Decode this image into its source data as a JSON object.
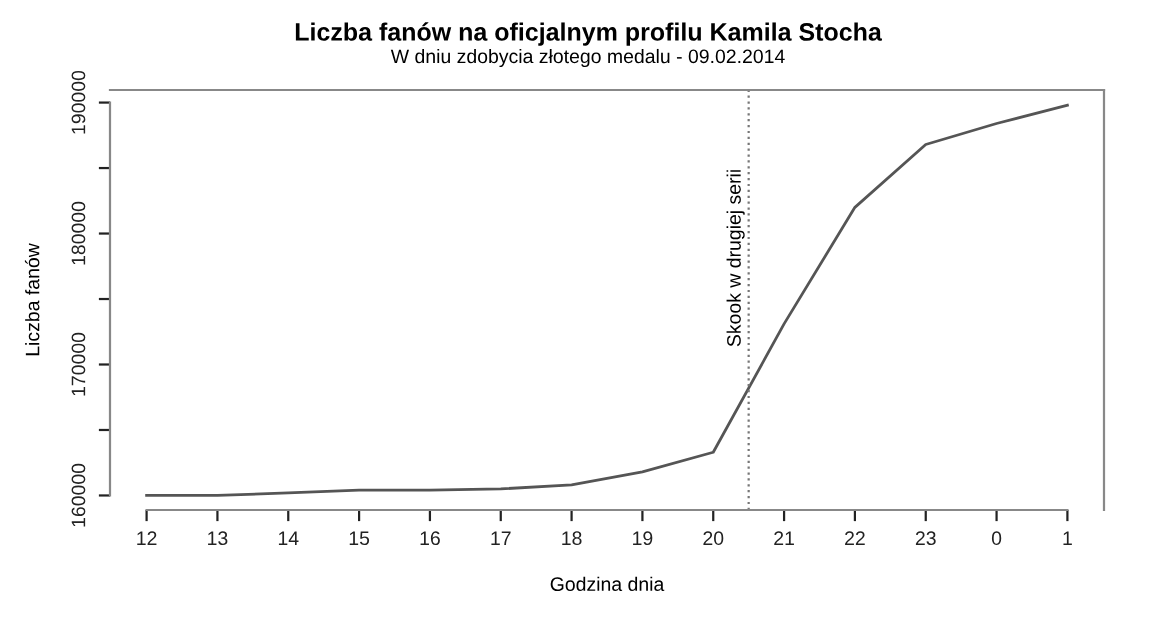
{
  "chart_data": {
    "type": "line",
    "title": "Liczba fanów na oficjalnym profilu Kamila Stocha",
    "subtitle": "W dniu zdobycia złotego medalu - 09.02.2014",
    "xlabel": "Godzina dnia",
    "ylabel": "Liczba fanów",
    "x": [
      "2014-02-09T12:00",
      "2014-02-09T13:00",
      "2014-02-09T14:00",
      "2014-02-09T15:00",
      "2014-02-09T16:00",
      "2014-02-09T17:00",
      "2014-02-09T18:00",
      "2014-02-09T19:00",
      "2014-02-09T20:00",
      "2014-02-09T21:00",
      "2014-02-09T22:00",
      "2014-02-09T23:00",
      "2014-02-10T00:00",
      "2014-02-10T01:00"
    ],
    "series": [
      {
        "color": "#555555",
        "values": [
          160000,
          160000,
          160200,
          160400,
          160400,
          160500,
          160800,
          161800,
          163300,
          173100,
          182000,
          186800,
          188400,
          189800
        ]
      }
    ],
    "xlim": [
      "2014-02-09T11:29",
      "2014-02-10T01:31"
    ],
    "xticks": [
      {
        "value": "2014-02-09T12:00",
        "label": "12"
      },
      {
        "value": "2014-02-09T13:00",
        "label": "13"
      },
      {
        "value": "2014-02-09T14:00",
        "label": "14"
      },
      {
        "value": "2014-02-09T15:00",
        "label": "15"
      },
      {
        "value": "2014-02-09T16:00",
        "label": "16"
      },
      {
        "value": "2014-02-09T17:00",
        "label": "17"
      },
      {
        "value": "2014-02-09T18:00",
        "label": "18"
      },
      {
        "value": "2014-02-09T19:00",
        "label": "19"
      },
      {
        "value": "2014-02-09T20:00",
        "label": "20"
      },
      {
        "value": "2014-02-09T21:00",
        "label": "21"
      },
      {
        "value": "2014-02-09T22:00",
        "label": "22"
      },
      {
        "value": "2014-02-09T23:00",
        "label": "23"
      },
      {
        "value": "2014-02-10T00:00",
        "label": "0"
      },
      {
        "value": "2014-02-10T01:00",
        "label": "1"
      }
    ],
    "ylim": [
      158890,
      190960
    ],
    "yticks": [
      160000,
      {
        "value": 165000,
        "label": null
      },
      170000,
      {
        "value": 175000,
        "label": null
      },
      180000,
      {
        "value": 185000,
        "label": null
      },
      190000
    ],
    "ref_lines": [
      {
        "axis": "x",
        "value": "2014-02-09T20:30",
        "label": "Skook w drugiej serii",
        "color": "#777777",
        "line_style": "dotted"
      }
    ],
    "grid": false,
    "marker": "none",
    "line_style": "solid",
    "legend": false
  }
}
